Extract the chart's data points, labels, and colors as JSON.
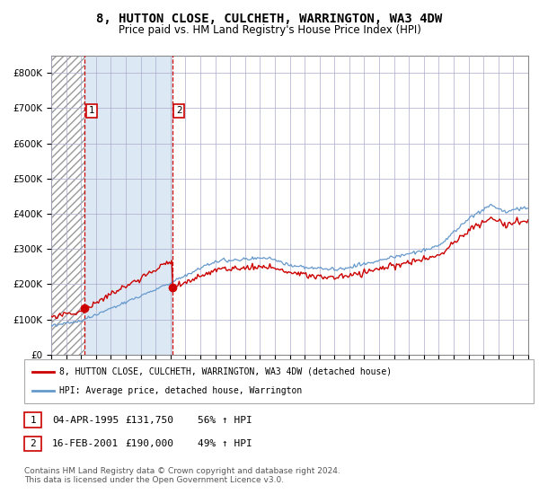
{
  "title": "8, HUTTON CLOSE, CULCHETH, WARRINGTON, WA3 4DW",
  "subtitle": "Price paid vs. HM Land Registry's House Price Index (HPI)",
  "ylim": [
    0,
    850000
  ],
  "yticks": [
    0,
    100000,
    200000,
    300000,
    400000,
    500000,
    600000,
    700000,
    800000
  ],
  "sale1_t": 1995.25,
  "sale1_price": 131750,
  "sale2_t": 2001.12,
  "sale2_price": 190000,
  "legend_red_label": "8, HUTTON CLOSE, CULCHETH, WARRINGTON, WA3 4DW (detached house)",
  "legend_blue_label": "HPI: Average price, detached house, Warrington",
  "red_line_color": "#cc0000",
  "blue_line_color": "#6699cc",
  "hatch_color": "#cccccc",
  "shade_color": "#dce9f5",
  "grid_color": "#aaaacc",
  "title_fontsize": 10,
  "subtitle_fontsize": 8.5,
  "xstart": 1993,
  "xend": 2025
}
